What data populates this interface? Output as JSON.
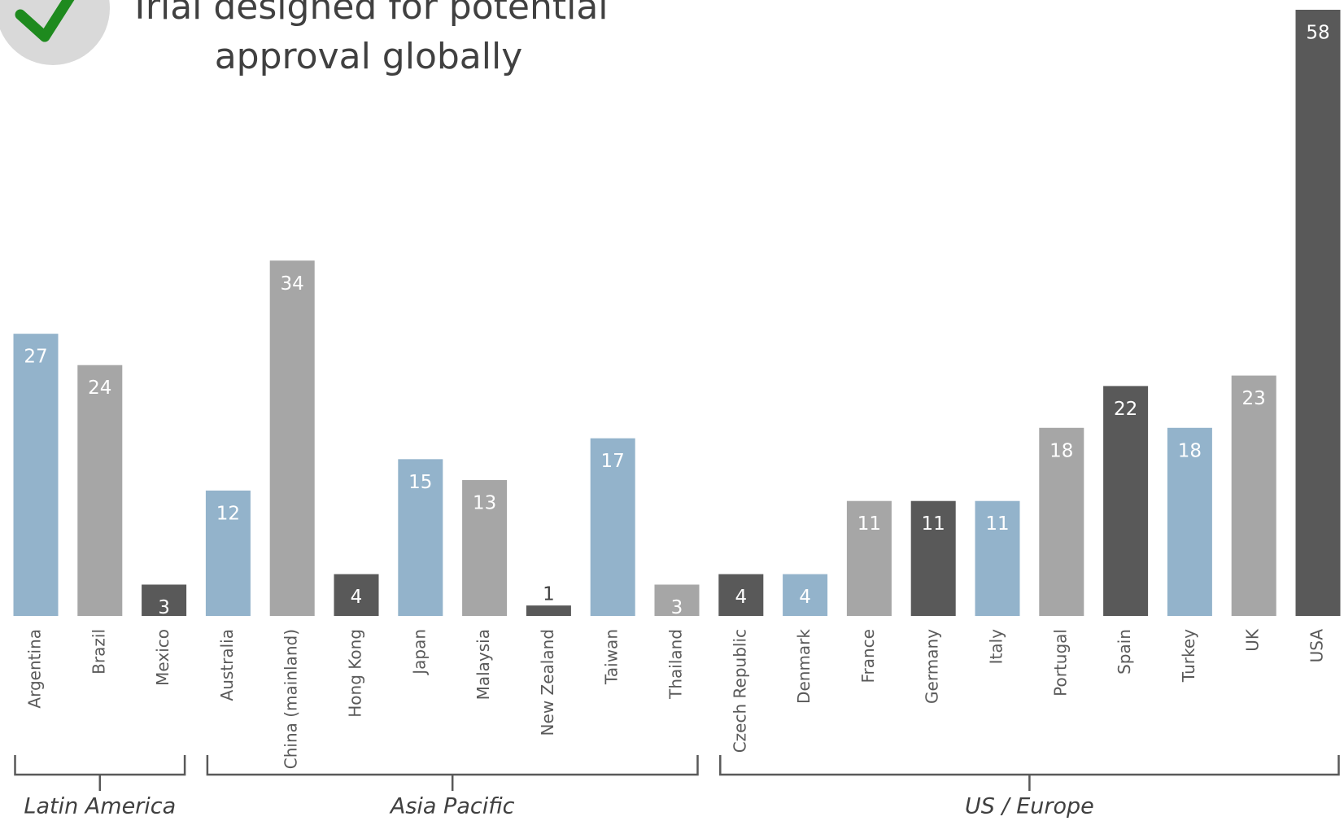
{
  "chart_data": {
    "type": "bar",
    "title_lines": [
      "Trial designed for potential",
      "approval globally"
    ],
    "categories": [
      "Argentina",
      "Brazil",
      "Mexico",
      "Australia",
      "China (mainland)",
      "Hong Kong",
      "Japan",
      "Malaysia",
      "New Zealand",
      "Taiwan",
      "Thailand",
      "Czech Republic",
      "Denmark",
      "France",
      "Germany",
      "Italy",
      "Portugal",
      "Spain",
      "Turkey",
      "UK",
      "USA"
    ],
    "values": [
      27,
      24,
      3,
      12,
      34,
      4,
      15,
      13,
      1,
      17,
      3,
      4,
      4,
      11,
      11,
      11,
      18,
      22,
      18,
      23,
      58
    ],
    "colors": [
      "#93b3cb",
      "#a6a6a6",
      "#595959",
      "#93b3cb",
      "#a6a6a6",
      "#595959",
      "#93b3cb",
      "#a6a6a6",
      "#595959",
      "#93b3cb",
      "#a6a6a6",
      "#595959",
      "#93b3cb",
      "#a6a6a6",
      "#595959",
      "#93b3cb",
      "#a6a6a6",
      "#595959",
      "#93b3cb",
      "#a6a6a6",
      "#595959"
    ],
    "group_labels": [
      "Latin America",
      "Asia Pacific",
      "US / Europe"
    ]
  }
}
